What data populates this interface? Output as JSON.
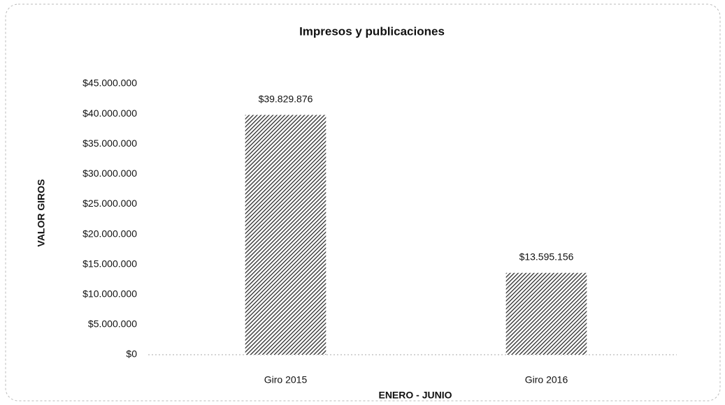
{
  "chart_data": {
    "type": "bar",
    "title": "Impresos y publicaciones",
    "x_label": "ENERO - JUNIO",
    "y_label": "VALOR GIROS",
    "categories": [
      "Giro 2015",
      "Giro 2016"
    ],
    "values": [
      39829876,
      13595156
    ],
    "value_labels": [
      "$39.829.876",
      "$13.595.156"
    ],
    "color": "#2b2b2b",
    "ylim": [
      0,
      45000000
    ],
    "yticks": [
      {
        "value": 0,
        "label": "$0"
      },
      {
        "value": 5000000,
        "label": "$5.000.000"
      },
      {
        "value": 10000000,
        "label": "$10.000.000"
      },
      {
        "value": 15000000,
        "label": "$15.000.000"
      },
      {
        "value": 20000000,
        "label": "$20.000.000"
      },
      {
        "value": 25000000,
        "label": "$25.000.000"
      },
      {
        "value": 30000000,
        "label": "$30.000.000"
      },
      {
        "value": 35000000,
        "label": "$35.000.000"
      },
      {
        "value": 40000000,
        "label": "$40.000.000"
      },
      {
        "value": 45000000,
        "label": "$45.000.000"
      }
    ],
    "grid": false
  }
}
